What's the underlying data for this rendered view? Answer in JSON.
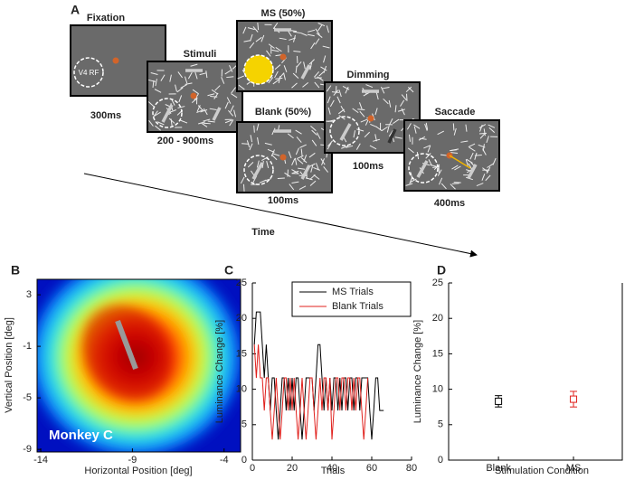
{
  "panels": {
    "a": "A",
    "b": "B",
    "c": "C",
    "d": "D"
  },
  "timeline": {
    "frames": [
      "Fixation",
      "Stimuli",
      "MS (50%)",
      "Blank (50%)",
      "Dimming",
      "Saccade"
    ],
    "durations": [
      "300ms",
      "200  - 900ms",
      "100ms",
      "100ms",
      "400ms"
    ],
    "rf_label": "V4 RF",
    "time_label": "Time"
  },
  "chart_data": [
    {
      "type": "heatmap",
      "xlabel": "Horizontal Position [deg]",
      "ylabel": "Vertical Position [deg]",
      "annotation": "Monkey C",
      "xlim": [
        -14.2,
        -3.1
      ],
      "ylim": [
        -9.2,
        4.2
      ],
      "xticks": [
        -14,
        -9,
        -4
      ],
      "yticks": [
        3,
        -1,
        -5,
        -9
      ]
    },
    {
      "type": "line",
      "xlabel": "Trials",
      "ylabel": "Luminance Change [%]",
      "xlim": [
        0,
        80
      ],
      "ylim": [
        0,
        25
      ],
      "xticks": [
        0,
        20,
        40,
        60,
        80
      ],
      "yticks": [
        0,
        5,
        10,
        15,
        20,
        25
      ],
      "x": [
        1,
        2,
        3,
        4,
        5,
        6,
        7,
        8,
        9,
        10,
        11,
        12,
        13,
        14,
        15,
        16,
        17,
        18,
        19,
        20,
        21,
        22,
        23,
        24,
        25,
        26,
        27,
        28,
        29,
        30,
        31,
        32,
        33,
        34,
        35,
        36,
        37,
        38,
        39,
        40,
        41,
        42,
        43,
        44,
        45,
        46,
        47,
        48,
        49,
        50,
        51,
        52,
        53,
        54,
        55,
        56,
        57,
        58,
        59,
        60,
        61,
        62,
        63,
        64,
        65,
        66
      ],
      "legend": "upper-right",
      "series": [
        {
          "name": "MS Trials",
          "color": "#000000",
          "values": [
            16.3,
            20.9,
            20.9,
            20.9,
            16.3,
            11.6,
            16.3,
            11.6,
            7.0,
            11.6,
            11.6,
            7.0,
            2.9,
            7.0,
            11.6,
            11.6,
            7.0,
            11.6,
            7.0,
            11.6,
            7.0,
            11.6,
            11.6,
            7.0,
            2.9,
            7.0,
            11.6,
            11.6,
            11.6,
            11.6,
            7.0,
            11.6,
            16.3,
            16.3,
            11.6,
            7.0,
            11.6,
            7.0,
            11.6,
            7.0,
            11.6,
            11.6,
            7.0,
            11.6,
            7.0,
            11.6,
            11.6,
            7.0,
            11.6,
            11.6,
            7.0,
            11.6,
            11.6,
            7.0,
            11.6,
            11.6,
            11.6,
            11.6,
            7.0,
            2.9,
            7.0,
            11.6,
            11.6,
            7.0,
            7.0,
            7.0
          ]
        },
        {
          "name": "Blank Trials",
          "color": "#e0201c",
          "values": [
            16.3,
            11.6,
            16.3,
            11.6,
            11.6,
            7.0,
            11.6,
            11.6,
            7.0,
            2.9,
            7.0,
            11.6,
            7.0,
            2.9,
            7.0,
            11.6,
            11.6,
            7.0,
            11.6,
            7.0,
            11.6,
            7.0,
            2.9,
            7.0,
            11.6,
            7.0,
            2.9,
            7.0,
            11.6,
            11.6,
            7.0,
            2.9,
            7.0,
            11.6,
            7.0,
            11.6,
            11.6,
            7.0,
            11.6,
            2.9,
            7.0,
            11.6,
            11.6,
            7.0,
            11.6,
            11.6,
            7.0,
            11.6,
            11.6,
            7.0,
            11.6,
            7.0,
            11.6,
            11.6,
            7.0,
            2.9,
            7.0,
            11.6,
            null,
            null,
            null,
            null,
            null,
            null,
            null,
            null
          ]
        }
      ]
    },
    {
      "type": "errorbar",
      "xlabel": "Stimulation Condition",
      "ylabel": "Luminance Change [%]",
      "categories": [
        "Blank",
        "MS"
      ],
      "values": [
        8.3,
        8.6
      ],
      "errors": [
        0.8,
        1.1
      ],
      "colors": [
        "#000000",
        "#e0201c"
      ],
      "ylim": [
        0,
        25
      ],
      "yticks": [
        0,
        5,
        10,
        15,
        20,
        25
      ]
    }
  ]
}
